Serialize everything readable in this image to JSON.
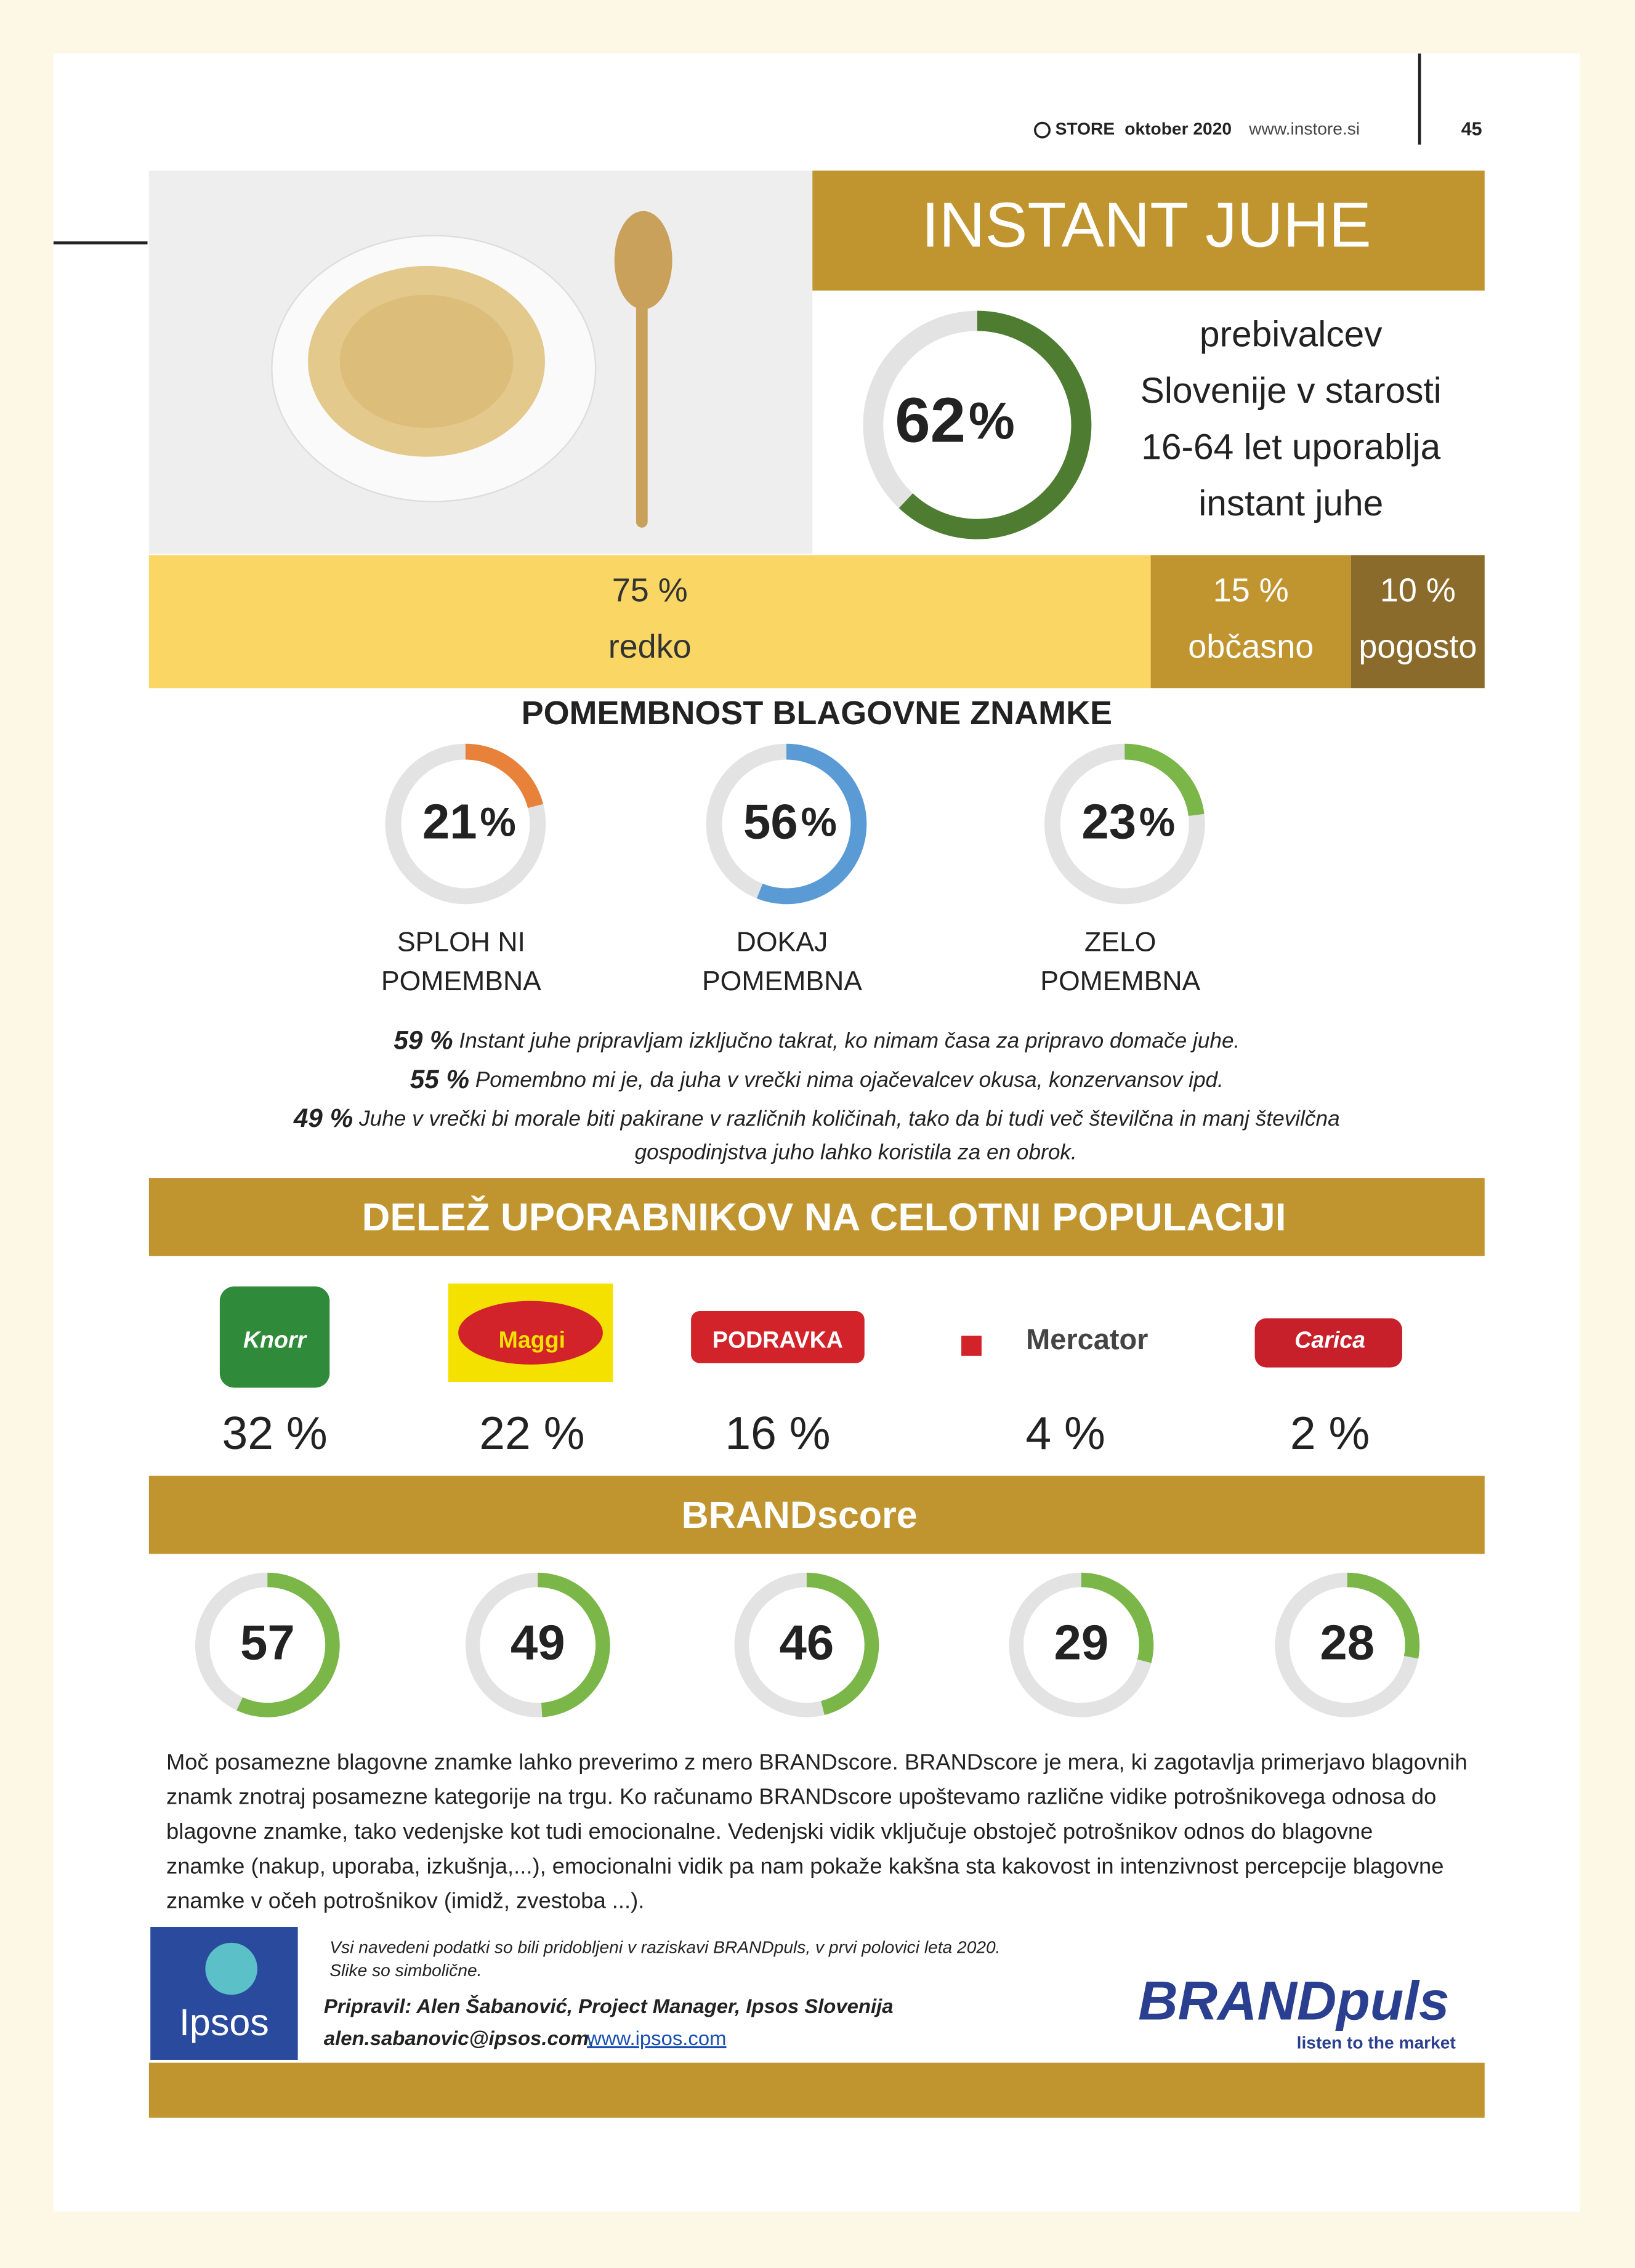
{
  "header": {
    "magazine": "STORE",
    "issue": "oktober 2020",
    "site": "www.instore.si",
    "page": "45"
  },
  "title": "INSTANT JUHE",
  "main_stat": {
    "value": 62,
    "unit": "%",
    "lines": [
      "prebivalcev",
      "Slovenije v starosti",
      "16-64 let uporablja",
      "instant juhe"
    ]
  },
  "frequency": [
    {
      "value": 75,
      "value_label": "75 %",
      "label": "redko"
    },
    {
      "value": 15,
      "value_label": "15 %",
      "label": "občasno"
    },
    {
      "value": 10,
      "value_label": "10 %",
      "label": "pogosto"
    }
  ],
  "importance": {
    "title": "POMEMBNOST BLAGOVNE ZNAMKE",
    "unit": "%",
    "items": [
      {
        "value": 21,
        "lines": [
          "SPLOH NI",
          "POMEMBNA"
        ]
      },
      {
        "value": 56,
        "lines": [
          "DOKAJ",
          "POMEMBNA"
        ]
      },
      {
        "value": 23,
        "lines": [
          "ZELO",
          "POMEMBNA"
        ]
      }
    ]
  },
  "statements": [
    {
      "value_label": "59 %",
      "lines": [
        "Instant juhe pripravljam izključno takrat, ko nimam časa za pripravo domače juhe."
      ]
    },
    {
      "value_label": "55 %",
      "lines": [
        "Pomembno mi je, da juha v vrečki nima ojačevalcev okusa, konzervansov ipd."
      ]
    },
    {
      "value_label": "49 %",
      "lines": [
        "Juhe v vrečki bi morale biti pakirane v različnih količinah, tako da bi tudi več številčna in manj številčna",
        "gospodinjstva juho lahko koristila za en obrok."
      ]
    }
  ],
  "share": {
    "title": "DELEŽ UPORABNIKOV NA CELOTNI POPULACIJI",
    "brands": [
      {
        "logo": "Knorr",
        "value_label": "32 %"
      },
      {
        "logo": "Maggi",
        "value_label": "22 %"
      },
      {
        "logo": "PODRAVKA",
        "value_label": "16 %"
      },
      {
        "logo": "Mercator",
        "value_label": "4 %"
      },
      {
        "logo": "Carica",
        "value_label": "2 %"
      }
    ]
  },
  "brandscore": {
    "title": "BRANDscore",
    "scores": [
      57,
      49,
      46,
      29,
      28
    ]
  },
  "paragraph": [
    "Moč posamezne blagovne znamke lahko preverimo z mero BRANDscore. BRANDscore je mera, ki zagotavlja primerjavo blagovnih",
    "znamk znotraj posamezne kategorije na trgu. Ko računamo BRANDscore upoštevamo različne vidike potrošnikovega odnosa do",
    "blagovne znamke, tako vedenjske kot tudi emocionalne. Vedenjski vidik vključuje obstoječ potrošnikov odnos do blagovne",
    "znamke (nakup, uporaba, izkušnja,...), emocionalni vidik pa nam pokaže kakšna sta kakovost in intenzivnost percepcije blagovne",
    "znamke v očeh potrošnikov (imidž, zvestoba ...)."
  ],
  "footer": {
    "note": [
      "Vsi navedeni podatki so bili pridobljeni v raziskavi BRANDpuls, v prvi polovici leta 2020.",
      "Slike so simbolične."
    ],
    "author": "Pripravil: Alen Šabanović, Project Manager, Ipsos Slovenija",
    "email": "alen.sabanovic@ipsos.com,",
    "link": "www.ipsos.com",
    "ipsos_logo": "Ipsos",
    "brandpuls_logo": "BRANDpuls",
    "brandpuls_tagline": "listen to the market"
  }
}
